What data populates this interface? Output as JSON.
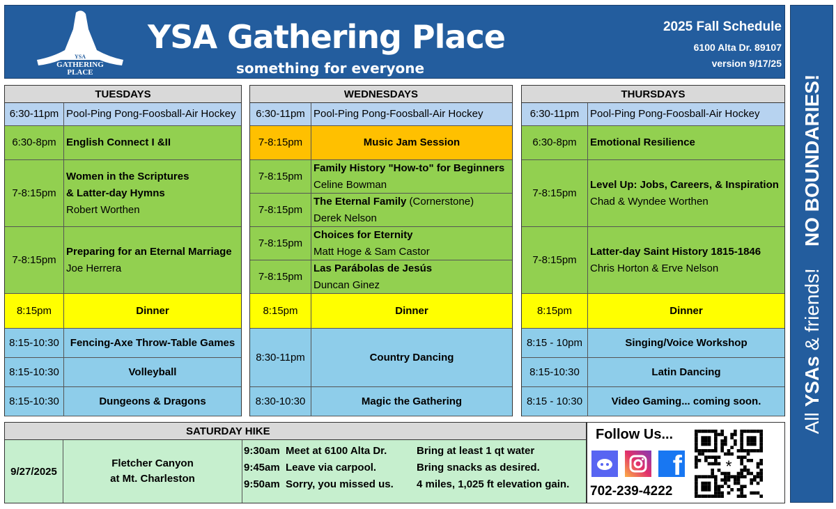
{
  "header": {
    "title": "YSA Gathering Place",
    "subtitle": "something for everyone",
    "schedule": "2025 Fall Schedule",
    "address": "6100 Alta Dr. 89107",
    "version": "version 9/17/25",
    "logo_text": [
      "YSA",
      "GATHERING",
      "PLACE"
    ]
  },
  "side_banner": {
    "part1": "All ",
    "part2": "YSAs",
    "part3": " & friends!",
    "part4": "NO BOUNDARIES!"
  },
  "colors": {
    "blue_header": "#235d9e",
    "light_blue": "#a9c8ea",
    "green": "#92d050",
    "orange": "#ffc000",
    "yellow": "#ffff00",
    "sky": "#8ecdea",
    "sat_green": "#c6efce",
    "gray": "#d9d9d9"
  },
  "days": [
    {
      "name": "TUESDAYS",
      "rows": [
        {
          "time": "6:30-11pm",
          "lines": [
            "Pool-Ping Pong-Foosball-Air Hockey"
          ],
          "bold": [
            false
          ],
          "color": "light_blue"
        },
        {
          "time": "6:30-8pm",
          "lines": [
            "English Connect I &II"
          ],
          "bold": [
            true
          ],
          "color": "green"
        },
        {
          "time": "7-8:15pm",
          "lines": [
            "Women in the Scriptures",
            "& Latter-day Hymns",
            "Robert Worthen"
          ],
          "bold": [
            true,
            true,
            false
          ],
          "color": "green"
        },
        {
          "time": "7-8:15pm",
          "lines": [
            "Preparing for an Eternal Marriage",
            "Joe Herrera"
          ],
          "bold": [
            true,
            false
          ],
          "color": "green"
        },
        {
          "time": "8:15pm",
          "lines": [
            "Dinner"
          ],
          "bold": [
            true
          ],
          "color": "yellow",
          "center": true
        },
        {
          "time": "8:15-10:30",
          "lines": [
            "Fencing-Axe Throw-Table Games"
          ],
          "bold": [
            true
          ],
          "color": "sky",
          "center": true
        },
        {
          "time": "8:15-10:30",
          "lines": [
            "Volleyball"
          ],
          "bold": [
            true
          ],
          "color": "sky",
          "center": true
        },
        {
          "time": "8:15-10:30",
          "lines": [
            "Dungeons & Dragons"
          ],
          "bold": [
            true
          ],
          "color": "sky",
          "center": true
        }
      ]
    },
    {
      "name": "WEDNESDAYS",
      "rows": [
        {
          "time": "6:30-11pm",
          "lines": [
            "Pool-Ping Pong-Foosball-Air Hockey"
          ],
          "bold": [
            false
          ],
          "color": "light_blue"
        },
        {
          "time": "7-8:15pm",
          "lines": [
            "Music Jam Session"
          ],
          "bold": [
            true
          ],
          "color": "orange",
          "center": true
        },
        {
          "time": "7-8:15pm",
          "lines": [
            "Family History \"How-to\" for Beginners",
            "Celine Bowman"
          ],
          "bold": [
            true,
            false
          ],
          "color": "green"
        },
        {
          "time": "7-8:15pm",
          "lines": [
            "The Eternal Family",
            "Derek Nelson"
          ],
          "extra": " (Cornerstone)",
          "bold": [
            true,
            false
          ],
          "color": "green"
        },
        {
          "time": "7-8:15pm",
          "lines": [
            "Choices for Eternity",
            "Matt Hoge & Sam Castor"
          ],
          "bold": [
            true,
            false
          ],
          "color": "green"
        },
        {
          "time": "7-8:15pm",
          "lines": [
            "Las Parábolas de Jesús",
            "Duncan Ginez"
          ],
          "bold": [
            true,
            false
          ],
          "color": "green"
        },
        {
          "time": "8:15pm",
          "lines": [
            "Dinner"
          ],
          "bold": [
            true
          ],
          "color": "yellow",
          "center": true
        },
        {
          "time": "8:30-11pm",
          "lines": [
            "Country Dancing"
          ],
          "bold": [
            true
          ],
          "color": "sky",
          "center": true
        },
        {
          "time": "8:30-10:30",
          "lines": [
            "Magic the Gathering"
          ],
          "bold": [
            true
          ],
          "color": "sky",
          "center": true
        }
      ]
    },
    {
      "name": "THURSDAYS",
      "rows": [
        {
          "time": "6:30-11pm",
          "lines": [
            "Pool-Ping Pong-Foosball-Air Hockey"
          ],
          "bold": [
            false
          ],
          "color": "light_blue"
        },
        {
          "time": "6:30-8pm",
          "lines": [
            "Emotional Resilience"
          ],
          "bold": [
            true
          ],
          "color": "green"
        },
        {
          "time": "7-8:15pm",
          "lines": [
            "Level Up: Jobs, Careers, & Inspiration",
            "Chad & Wyndee  Worthen"
          ],
          "bold": [
            true,
            false
          ],
          "color": "green"
        },
        {
          "time": "7-8:15pm",
          "lines": [
            "Latter-day Saint History 1815-1846",
            "Chris Horton & Erve Nelson"
          ],
          "bold": [
            true,
            false
          ],
          "color": "green"
        },
        {
          "time": "8:15pm",
          "lines": [
            "Dinner"
          ],
          "bold": [
            true
          ],
          "color": "yellow",
          "center": true
        },
        {
          "time": "8:15 - 10pm",
          "lines": [
            "Singing/Voice  Workshop"
          ],
          "bold": [
            true
          ],
          "color": "sky",
          "center": true
        },
        {
          "time": "8:15-10:30",
          "lines": [
            "Latin Dancing"
          ],
          "bold": [
            true
          ],
          "color": "sky",
          "center": true
        },
        {
          "time": "8:15 - 10:30",
          "lines": [
            "Video Gaming...  coming soon."
          ],
          "bold": [
            true
          ],
          "color": "sky",
          "center": true
        }
      ]
    }
  ],
  "saturday": {
    "title": "SATURDAY  HIKE",
    "date": "9/27/2025",
    "location": [
      "Fletcher Canyon",
      "at Mt. Charleston"
    ],
    "schedule": [
      {
        "time": "9:30am",
        "text": "Meet at 6100 Alta Dr.",
        "note": "Bring at least 1 qt water"
      },
      {
        "time": "9:45am",
        "text": "Leave via carpool.",
        "note": "Bring snacks as desired."
      },
      {
        "time": "9:50am",
        "text": "Sorry, you missed us.",
        "note": "4 miles, 1,025 ft elevation gain."
      }
    ]
  },
  "follow": {
    "title": "Follow Us...",
    "phone": "702-239-4222",
    "icons": [
      "discord-icon",
      "instagram-icon",
      "facebook-icon",
      "qr-code"
    ]
  }
}
